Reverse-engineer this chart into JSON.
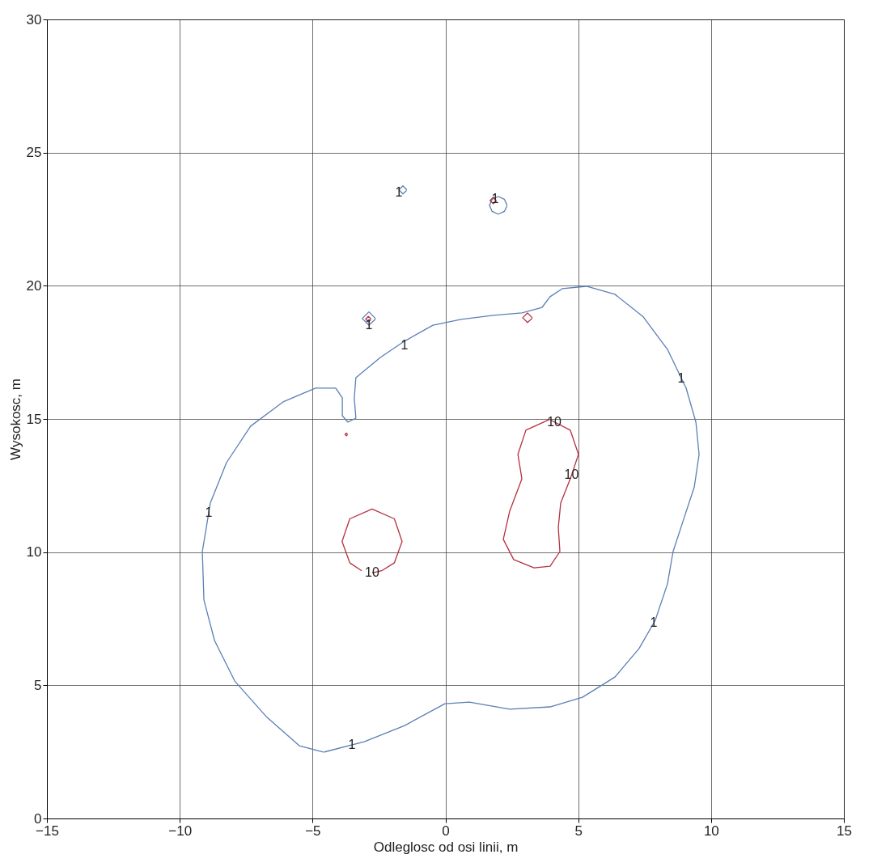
{
  "chart_data": {
    "type": "line",
    "xlabel": "Odleglosc od osi linii, m",
    "ylabel": "Wysokosc, m",
    "xlim": [
      -15,
      15
    ],
    "xticks": [
      -15,
      -10,
      -5,
      0,
      5,
      10,
      15
    ],
    "ylim": [
      0,
      30
    ],
    "yticks": [
      0,
      5,
      10,
      15,
      20,
      25,
      30
    ],
    "grid": true,
    "series": [
      {
        "color": "#5b7fb5",
        "x": [
          -4.58,
          -3.06,
          -1.53,
          -0.02,
          0.9,
          2.42,
          3.94,
          5.16,
          6.38,
          7.29,
          7.9,
          8.36,
          8.57,
          8.97,
          9.37,
          9.55,
          9.43,
          9.06,
          8.36,
          7.45,
          6.38,
          5.31,
          4.4,
          3.94,
          3.64,
          2.88,
          1.81,
          0.59,
          -0.47,
          -1.54,
          -2.45,
          -3.37,
          -3.43,
          -3.37,
          -3.67,
          -3.88,
          -3.88,
          -4.13,
          -4.89,
          -6.11,
          -7.33,
          -8.24,
          -8.85,
          -9.15,
          -9.09,
          -8.69,
          -7.93,
          -6.72,
          -5.5,
          -4.6
        ],
        "values": [
          2.49,
          2.88,
          3.49,
          4.31,
          4.37,
          4.1,
          4.19,
          4.55,
          5.31,
          6.38,
          7.44,
          8.81,
          10.02,
          11.24,
          12.45,
          13.67,
          14.88,
          16.16,
          17.61,
          18.83,
          19.68,
          19.98,
          19.89,
          19.59,
          19.19,
          18.98,
          18.89,
          18.74,
          18.52,
          17.92,
          17.31,
          16.55,
          15.79,
          15.03,
          14.88,
          15.12,
          15.79,
          16.16,
          16.16,
          15.64,
          14.73,
          13.36,
          11.84,
          10.02,
          8.2,
          6.68,
          5.16,
          3.8,
          2.73,
          2.49
        ]
      },
      {
        "color": "#b8303f",
        "x": [
          -3.15,
          -3.6,
          -3.89,
          -3.6,
          -2.76,
          -1.92,
          -1.63,
          -1.92,
          -2.4,
          -2.76
        ],
        "values": [
          9.3,
          9.6,
          10.4,
          11.25,
          11.62,
          11.25,
          10.4,
          9.6,
          9.3,
          9.22
        ]
      },
      {
        "color": "#b8303f",
        "x": [
          3.94,
          4.7,
          5.01,
          4.7,
          4.34,
          4.25,
          4.31,
          3.94,
          3.34,
          2.57,
          2.18,
          2.42,
          2.88,
          2.73,
          3.03,
          3.92
        ],
        "values": [
          14.97,
          14.58,
          13.67,
          12.75,
          11.84,
          10.93,
          10.02,
          9.47,
          9.41,
          9.72,
          10.48,
          11.54,
          12.75,
          13.67,
          14.58,
          14.98
        ]
      },
      {
        "color": "#5b7fb5",
        "x": [
          -1.45,
          -1.6,
          -1.75,
          -1.6,
          -1.46
        ],
        "values": [
          23.6,
          23.75,
          23.6,
          23.45,
          23.58
        ]
      },
      {
        "color": "#5b7fb5",
        "x": [
          2.32,
          2.22,
          1.99,
          1.76,
          1.66,
          1.76,
          1.99,
          2.22,
          2.32
        ],
        "values": [
          23.02,
          23.25,
          23.35,
          23.25,
          23.02,
          22.79,
          22.69,
          22.79,
          23.0
        ]
      },
      {
        "color": "#b8303f",
        "x": [
          1.92,
          1.8,
          1.68,
          1.8,
          1.92
        ],
        "values": [
          23.2,
          23.32,
          23.2,
          23.08,
          23.18
        ]
      },
      {
        "color": "#5b7fb5",
        "x": [
          -2.63,
          -2.88,
          -3.13,
          -2.88,
          -2.63
        ],
        "values": [
          18.77,
          19.02,
          18.77,
          18.52,
          18.75
        ]
      },
      {
        "color": "#b8303f",
        "x": [
          -2.8,
          -2.9,
          -3.0,
          -2.9,
          -2.8
        ],
        "values": [
          18.75,
          18.85,
          18.75,
          18.65,
          18.73
        ]
      },
      {
        "color": "#b8303f",
        "x": [
          3.27,
          3.09,
          2.91,
          3.09,
          3.27
        ],
        "values": [
          18.8,
          18.98,
          18.8,
          18.62,
          18.78
        ]
      },
      {
        "color": "#b8303f",
        "x": [
          -3.68,
          -3.73,
          -3.78,
          -3.73,
          -3.68
        ],
        "values": [
          14.42,
          14.47,
          14.42,
          14.37,
          14.41
        ]
      }
    ],
    "annotations": [
      {
        "text": "1",
        "x": -3.52,
        "y": 2.76
      },
      {
        "text": "1",
        "x": -1.54,
        "y": 17.77
      },
      {
        "text": "1",
        "x": 8.88,
        "y": 16.53
      },
      {
        "text": "1",
        "x": -8.91,
        "y": 11.48
      },
      {
        "text": "1",
        "x": 7.84,
        "y": 7.34
      },
      {
        "text": "10",
        "x": -2.76,
        "y": 9.22
      },
      {
        "text": "10",
        "x": 4.1,
        "y": 14.89
      },
      {
        "text": "10",
        "x": 4.75,
        "y": 12.9
      },
      {
        "text": "1",
        "x": -1.75,
        "y": 23.5
      },
      {
        "text": "1",
        "x": 1.87,
        "y": 23.26
      },
      {
        "text": "1",
        "x": -2.88,
        "y": 18.52
      }
    ]
  }
}
